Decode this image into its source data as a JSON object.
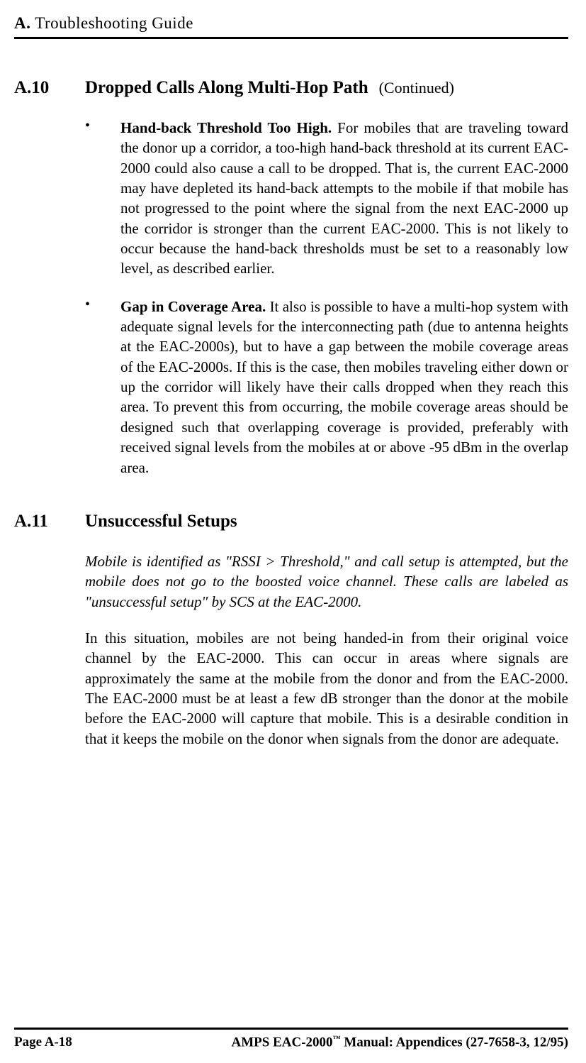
{
  "header": {
    "letter": "A.",
    "title": "Troubleshooting Guide"
  },
  "section_a10": {
    "number": "A.10",
    "title": "Dropped Calls Along Multi-Hop Path",
    "continued": "(Continued)",
    "bullets": [
      {
        "heading": "Hand-back Threshold Too High.",
        "text": "  For mobiles that are traveling toward the donor up a corridor, a too-high hand-back threshold at its current EAC-2000 could also cause a call to be dropped.  That is, the current EAC-2000 may have depleted its hand-back attempts to the mobile if that mobile has not progressed to the point where the signal from the next EAC-2000 up the corridor is stronger than the current EAC-2000.  This is not likely to occur because the hand-back thresholds must be set to a reasonably low level, as described earlier."
      },
      {
        "heading": "Gap in Coverage Area.",
        "text": "  It also is possible to have a multi-hop system with adequate signal levels for the interconnecting path (due to antenna heights at the EAC-2000s), but to have a gap between the mobile coverage areas of the EAC-2000s.  If this is the case, then mobiles traveling either down or up the corridor will likely have their calls dropped when they reach this area.  To prevent this from occurring, the mobile coverage areas should be designed such that overlapping coverage is provided, preferably with received signal levels from the mobiles at or above -95 dBm in the overlap area."
      }
    ]
  },
  "section_a11": {
    "number": "A.11",
    "title": "Unsuccessful Setups",
    "italic_intro": "Mobile is identified as \"RSSI > Threshold,\" and call setup is attempted, but the mobile does not go to the boosted voice channel.  These calls are labeled as \"unsuccessful setup\" by SCS at the EAC-2000.",
    "body": "In this situation, mobiles are not being handed-in from their original voice channel by the EAC-2000.  This can occur in areas where signals are approximately the same at the mobile from the donor and from the EAC-2000.  The EAC-2000 must be at least a few dB stronger than the donor at the mobile before the EAC-2000 will capture that mobile.  This is a desirable condition in that it keeps the mobile on the donor when signals from the donor are adequate."
  },
  "footer": {
    "page_label": "Page A-18",
    "manual_prefix": "AMPS EAC-2000",
    "manual_suffix": " Manual:  Appendices (27-7658-3, 12/95)"
  }
}
